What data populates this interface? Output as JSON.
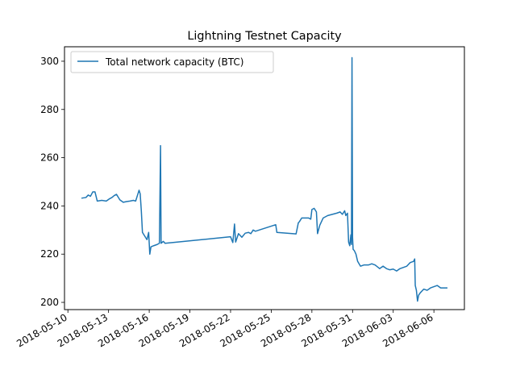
{
  "chart_data": {
    "type": "line",
    "title": "Lightning Testnet Capacity",
    "xlabel": "",
    "ylabel": "",
    "legend": {
      "placement": "top-left"
    },
    "grid": false,
    "xlim": [
      "2018-05-09T18:00",
      "2018-06-08T06:00"
    ],
    "ylim": [
      197,
      306
    ],
    "x_ticks": [
      "2018-05-10",
      "2018-05-13",
      "2018-05-16",
      "2018-05-19",
      "2018-05-22",
      "2018-05-25",
      "2018-05-28",
      "2018-05-31",
      "2018-06-03",
      "2018-06-06"
    ],
    "y_ticks": [
      200,
      220,
      240,
      260,
      280,
      300
    ],
    "series": [
      {
        "name": "Total network capacity (BTC)",
        "color": "#1f77b4",
        "points": [
          [
            "2018-05-11T00:00",
            243.2
          ],
          [
            "2018-05-11T08:00",
            243.5
          ],
          [
            "2018-05-11T12:00",
            244.5
          ],
          [
            "2018-05-11T16:00",
            244.0
          ],
          [
            "2018-05-11T20:00",
            245.8
          ],
          [
            "2018-05-12T00:00",
            245.8
          ],
          [
            "2018-05-12T04:00",
            242.0
          ],
          [
            "2018-05-12T12:00",
            242.3
          ],
          [
            "2018-05-12T20:00",
            242.0
          ],
          [
            "2018-05-13T02:00",
            243.0
          ],
          [
            "2018-05-13T06:00",
            243.5
          ],
          [
            "2018-05-13T10:00",
            244.3
          ],
          [
            "2018-05-13T14:00",
            244.8
          ],
          [
            "2018-05-13T20:00",
            242.5
          ],
          [
            "2018-05-14T02:00",
            241.5
          ],
          [
            "2018-05-14T08:00",
            241.8
          ],
          [
            "2018-05-14T14:00",
            242.0
          ],
          [
            "2018-05-14T20:00",
            242.3
          ],
          [
            "2018-05-15T00:00",
            242.0
          ],
          [
            "2018-05-15T04:00",
            245.0
          ],
          [
            "2018-05-15T06:00",
            246.5
          ],
          [
            "2018-05-15T08:00",
            245.0
          ],
          [
            "2018-05-15T10:00",
            238.0
          ],
          [
            "2018-05-15T12:00",
            229.0
          ],
          [
            "2018-05-15T16:00",
            227.5
          ],
          [
            "2018-05-15T20:00",
            226.0
          ],
          [
            "2018-05-15T23:00",
            229.0
          ],
          [
            "2018-05-16T01:00",
            220.0
          ],
          [
            "2018-05-16T03:00",
            223.0
          ],
          [
            "2018-05-16T08:00",
            223.5
          ],
          [
            "2018-05-16T14:00",
            224.0
          ],
          [
            "2018-05-16T18:00",
            224.5
          ],
          [
            "2018-05-16T20:00",
            265.0
          ],
          [
            "2018-05-16T21:00",
            224.5
          ],
          [
            "2018-05-17T01:00",
            225.3
          ],
          [
            "2018-05-17T04:00",
            224.5
          ],
          [
            "2018-05-22T00:00",
            227.2
          ],
          [
            "2018-05-22T04:00",
            224.8
          ],
          [
            "2018-05-22T07:00",
            232.5
          ],
          [
            "2018-05-22T09:00",
            225.0
          ],
          [
            "2018-05-22T14:00",
            228.5
          ],
          [
            "2018-05-22T20:00",
            227.0
          ],
          [
            "2018-05-23T02:00",
            228.7
          ],
          [
            "2018-05-23T08:00",
            229.0
          ],
          [
            "2018-05-23T12:00",
            228.5
          ],
          [
            "2018-05-23T16:00",
            230.0
          ],
          [
            "2018-05-23T20:00",
            229.5
          ],
          [
            "2018-05-25T08:00",
            232.2
          ],
          [
            "2018-05-25T10:00",
            229.0
          ],
          [
            "2018-05-26T20:00",
            228.4
          ],
          [
            "2018-05-27T00:00",
            233.0
          ],
          [
            "2018-05-27T02:00",
            233.5
          ],
          [
            "2018-05-27T06:00",
            235.0
          ],
          [
            "2018-05-27T12:00",
            235.0
          ],
          [
            "2018-05-27T18:00",
            235.0
          ],
          [
            "2018-05-27T22:00",
            234.5
          ],
          [
            "2018-05-28T00:00",
            238.5
          ],
          [
            "2018-05-28T04:00",
            239.0
          ],
          [
            "2018-05-28T08:00",
            237.5
          ],
          [
            "2018-05-28T10:00",
            228.5
          ],
          [
            "2018-05-28T14:00",
            232.0
          ],
          [
            "2018-05-28T20:00",
            235.0
          ],
          [
            "2018-05-29T04:00",
            236.0
          ],
          [
            "2018-05-29T12:00",
            236.5
          ],
          [
            "2018-05-29T20:00",
            237.0
          ],
          [
            "2018-05-30T02:00",
            237.5
          ],
          [
            "2018-05-30T06:00",
            236.5
          ],
          [
            "2018-05-30T10:00",
            238.0
          ],
          [
            "2018-05-30T12:00",
            236.0
          ],
          [
            "2018-05-30T15:00",
            237.0
          ],
          [
            "2018-05-30T17:00",
            225.0
          ],
          [
            "2018-05-30T19:00",
            223.5
          ],
          [
            "2018-05-30T21:00",
            228.0
          ],
          [
            "2018-05-30T22:00",
            224.0
          ],
          [
            "2018-05-30T23:00",
            301.5
          ],
          [
            "2018-05-31T00:00",
            227.0
          ],
          [
            "2018-05-31T01:00",
            222.0
          ],
          [
            "2018-05-31T03:00",
            221.5
          ],
          [
            "2018-05-31T06:00",
            220.0
          ],
          [
            "2018-05-31T09:00",
            217.0
          ],
          [
            "2018-05-31T14:00",
            215.0
          ],
          [
            "2018-05-31T20:00",
            215.5
          ],
          [
            "2018-06-01T04:00",
            215.5
          ],
          [
            "2018-06-01T10:00",
            216.0
          ],
          [
            "2018-06-01T16:00",
            215.5
          ],
          [
            "2018-06-02T00:00",
            214.0
          ],
          [
            "2018-06-02T06:00",
            215.0
          ],
          [
            "2018-06-02T12:00",
            214.0
          ],
          [
            "2018-06-02T18:00",
            213.5
          ],
          [
            "2018-06-03T00:00",
            213.8
          ],
          [
            "2018-06-03T06:00",
            213.0
          ],
          [
            "2018-06-03T12:00",
            214.0
          ],
          [
            "2018-06-03T18:00",
            214.5
          ],
          [
            "2018-06-04T00:00",
            215.0
          ],
          [
            "2018-06-04T06:00",
            216.5
          ],
          [
            "2018-06-04T12:00",
            217.0
          ],
          [
            "2018-06-04T14:00",
            218.0
          ],
          [
            "2018-06-04T15:00",
            207.0
          ],
          [
            "2018-06-04T17:00",
            205.0
          ],
          [
            "2018-06-04T19:00",
            200.5
          ],
          [
            "2018-06-04T21:00",
            203.0
          ],
          [
            "2018-06-05T00:00",
            204.0
          ],
          [
            "2018-06-05T06:00",
            205.5
          ],
          [
            "2018-06-05T12:00",
            205.0
          ],
          [
            "2018-06-05T18:00",
            206.0
          ],
          [
            "2018-06-06T00:00",
            206.5
          ],
          [
            "2018-06-06T06:00",
            207.0
          ],
          [
            "2018-06-06T12:00",
            206.0
          ],
          [
            "2018-06-06T18:00",
            206.0
          ],
          [
            "2018-06-07T00:00",
            206.0
          ]
        ]
      }
    ]
  }
}
